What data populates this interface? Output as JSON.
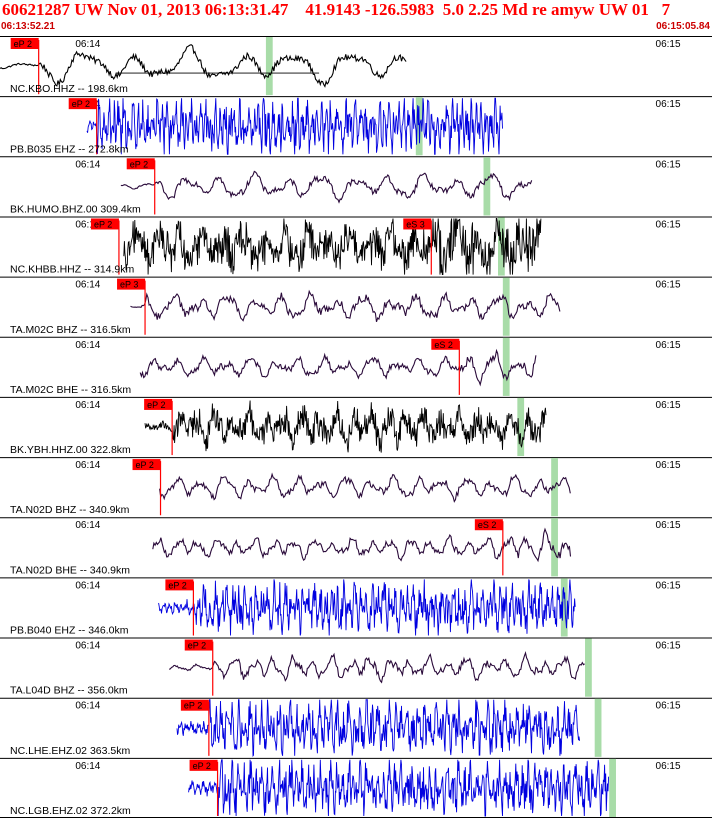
{
  "header": {
    "title": "60621287 UW Nov 01, 2013 06:13:31.47    41.9143 -126.5983  5.0 2.25 Md re amyw UW 01   7",
    "start_time": "06:13:52.21",
    "end_time": "06:15:05.84"
  },
  "colors": {
    "pick": "#ff0000",
    "pick_text": "#000000",
    "window": "#a8dca8",
    "frame": "#000000",
    "trace_bb": "#2a0a3a",
    "trace_sp": "#0000e0",
    "trace_strong": "#000000"
  },
  "chart_data": {
    "type": "line",
    "x_unit": "seconds after 06:13:52.21",
    "x_range": [
      0,
      73.63
    ],
    "minute_labels": [
      {
        "label": "06:14",
        "t": 7.79
      },
      {
        "label": "06:15",
        "t": 67.79
      }
    ],
    "traces": [
      {
        "id": "NC.KBO..HHZ",
        "label": "NC.KBO.HHZ -- 198.6km",
        "color": "trace_strong",
        "t_start": 0.0,
        "t_end": 42.0,
        "noise": 0.05,
        "amp": 0.6,
        "period": 5.5,
        "p_pick": {
          "label": "eP 2",
          "t": 4.0
        },
        "s_pick": null,
        "window": [
          27.5,
          28.2
        ],
        "smooth": true,
        "ref_line": true
      },
      {
        "id": "PB.B035..EHZ",
        "label": "PB.B035 EHZ -- 272.8km",
        "color": "trace_sp",
        "t_start": 9.0,
        "t_end": 52.0,
        "noise": 0.02,
        "amp": 0.75,
        "period": 0.5,
        "p_pick": {
          "label": "eP 2",
          "t": 10.0
        },
        "s_pick": null,
        "window": [
          43.0,
          43.7
        ],
        "smooth": false
      },
      {
        "id": "BK.HUMO..BHZ.00",
        "label": "BK.HUMO.BHZ.00 309.4km",
        "color": "trace_bb",
        "t_start": 12.5,
        "t_end": 55.0,
        "noise": 0.06,
        "amp": 0.45,
        "period": 3.5,
        "p_pick": {
          "label": "eP 2",
          "t": 16.0
        },
        "s_pick": null,
        "window": [
          50.0,
          50.7
        ],
        "smooth": true
      },
      {
        "id": "NC.KHBB..HHZ",
        "label": "NC.KHBB.HHZ -- 314.9km",
        "color": "trace_strong",
        "t_start": 12.8,
        "t_end": 56.0,
        "noise": 0.22,
        "amp": 0.5,
        "period": 2.2,
        "p_pick": {
          "label": "eP 2",
          "t": 12.3
        },
        "s_pick": {
          "label": "eS 3",
          "t": 44.6
        },
        "window": [
          51.5,
          52.2
        ],
        "smooth": false
      },
      {
        "id": "TA.M02C..BHZ",
        "label": "TA.M02C BHZ -- 316.5km",
        "color": "trace_bb",
        "t_start": 13.5,
        "t_end": 58.0,
        "noise": 0.08,
        "amp": 0.45,
        "period": 2.8,
        "p_pick": {
          "label": "eP 3",
          "t": 15.0
        },
        "s_pick": null,
        "window": [
          52.0,
          52.7
        ],
        "smooth": true
      },
      {
        "id": "TA.M02C..BHE",
        "label": "TA.M02C BHE -- 316.5km",
        "color": "trace_bb",
        "t_start": 14.5,
        "t_end": 55.5,
        "noise": 0.08,
        "amp": 0.35,
        "period": 2.5,
        "p_pick": null,
        "s_pick": {
          "label": "eS 2",
          "t": 47.5
        },
        "window": [
          52.0,
          52.7
        ],
        "smooth": true
      },
      {
        "id": "BK.YBH..HHZ.00",
        "label": "BK.YBH.HHZ.00 322.8km",
        "color": "trace_strong",
        "t_start": 15.0,
        "t_end": 56.5,
        "noise": 0.1,
        "amp": 0.5,
        "period": 1.8,
        "p_pick": {
          "label": "eP 2",
          "t": 17.8
        },
        "s_pick": null,
        "window": [
          53.5,
          54.2
        ],
        "smooth": false
      },
      {
        "id": "TA.N02D..BHZ",
        "label": "TA.N02D BHZ -- 340.9km",
        "color": "trace_bb",
        "t_start": 16.5,
        "t_end": 59.0,
        "noise": 0.07,
        "amp": 0.4,
        "period": 2.5,
        "p_pick": {
          "label": "eP 2",
          "t": 16.6
        },
        "s_pick": null,
        "window": [
          57.0,
          57.7
        ],
        "smooth": true
      },
      {
        "id": "TA.N02D..BHE",
        "label": "TA.N02D BHE -- 340.9km",
        "color": "trace_bb",
        "t_start": 15.8,
        "t_end": 59.0,
        "noise": 0.08,
        "amp": 0.35,
        "period": 2.0,
        "p_pick": null,
        "s_pick": {
          "label": "eS 2",
          "t": 52.0
        },
        "window": [
          57.0,
          57.7
        ],
        "smooth": true
      },
      {
        "id": "PB.B040..EHZ",
        "label": "PB.B040 EHZ -- 346.0km",
        "color": "trace_sp",
        "t_start": 16.4,
        "t_end": 59.5,
        "noise": 0.02,
        "amp": 0.7,
        "period": 0.6,
        "p_pick": {
          "label": "eP 2",
          "t": 20.0
        },
        "s_pick": null,
        "window": [
          58.0,
          58.7
        ],
        "smooth": false
      },
      {
        "id": "TA.L04D..BHZ",
        "label": "TA.L04D BHZ -- 356.0km",
        "color": "trace_bb",
        "t_start": 17.5,
        "t_end": 60.5,
        "noise": 0.08,
        "amp": 0.4,
        "period": 2.0,
        "p_pick": {
          "label": "eP 2",
          "t": 22.0
        },
        "s_pick": null,
        "window": [
          60.5,
          61.2
        ],
        "smooth": true
      },
      {
        "id": "NC.LHE..EHZ.02",
        "label": "NC.LHE.EHZ.02 363.5km",
        "color": "trace_sp",
        "t_start": 18.3,
        "t_end": 60.0,
        "noise": 0.02,
        "amp": 0.75,
        "period": 0.6,
        "p_pick": {
          "label": "eP 2",
          "t": 21.6
        },
        "s_pick": null,
        "window": [
          61.5,
          62.2
        ],
        "smooth": false
      },
      {
        "id": "NC.LGB..EHZ.02",
        "label": "NC.LGB.EHZ.02 372.2km",
        "color": "trace_sp",
        "t_start": 19.5,
        "t_end": 63.0,
        "noise": 0.02,
        "amp": 0.75,
        "period": 0.6,
        "p_pick": {
          "label": "eP 2",
          "t": 22.5
        },
        "s_pick": null,
        "window": [
          63.0,
          63.7
        ],
        "smooth": false
      }
    ]
  }
}
